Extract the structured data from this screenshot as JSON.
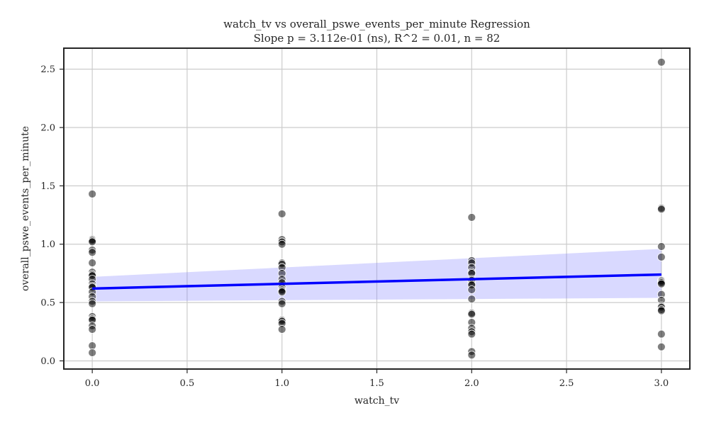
{
  "chart_data": {
    "type": "scatter",
    "title": "watch_tv vs overall_pswe_events_per_minute Regression",
    "subtitle": "Slope p = 3.112e-01 (ns), R^2 = 0.01, n = 82",
    "xlabel": "watch_tv",
    "ylabel": "overall_pswe_events_per_minute",
    "xlim": [
      -0.15,
      3.15
    ],
    "ylim": [
      -0.07,
      2.68
    ],
    "xticks": [
      0.0,
      0.5,
      1.0,
      1.5,
      2.0,
      2.5,
      3.0
    ],
    "xtick_labels": [
      "0.0",
      "0.5",
      "1.0",
      "1.5",
      "2.0",
      "2.5",
      "3.0"
    ],
    "yticks": [
      0.0,
      0.5,
      1.0,
      1.5,
      2.0,
      2.5
    ],
    "ytick_labels": [
      "0.0",
      "0.5",
      "1.0",
      "1.5",
      "2.0",
      "2.5"
    ],
    "grid": true,
    "points": [
      {
        "x": 0,
        "y": 1.43
      },
      {
        "x": 0,
        "y": 1.04
      },
      {
        "x": 0,
        "y": 1.03
      },
      {
        "x": 0,
        "y": 1.02
      },
      {
        "x": 0,
        "y": 0.95
      },
      {
        "x": 0,
        "y": 0.93
      },
      {
        "x": 0,
        "y": 0.84
      },
      {
        "x": 0,
        "y": 0.76
      },
      {
        "x": 0,
        "y": 0.74
      },
      {
        "x": 0,
        "y": 0.73
      },
      {
        "x": 0,
        "y": 0.7
      },
      {
        "x": 0,
        "y": 0.66
      },
      {
        "x": 0,
        "y": 0.64
      },
      {
        "x": 0,
        "y": 0.63
      },
      {
        "x": 0,
        "y": 0.59
      },
      {
        "x": 0,
        "y": 0.55
      },
      {
        "x": 0,
        "y": 0.51
      },
      {
        "x": 0,
        "y": 0.49
      },
      {
        "x": 0,
        "y": 0.38
      },
      {
        "x": 0,
        "y": 0.36
      },
      {
        "x": 0,
        "y": 0.35
      },
      {
        "x": 0,
        "y": 0.3
      },
      {
        "x": 0,
        "y": 0.27
      },
      {
        "x": 0,
        "y": 0.13
      },
      {
        "x": 0,
        "y": 0.07
      },
      {
        "x": 1,
        "y": 1.26
      },
      {
        "x": 1,
        "y": 1.04
      },
      {
        "x": 1,
        "y": 1.02
      },
      {
        "x": 1,
        "y": 1.0
      },
      {
        "x": 1,
        "y": 0.84
      },
      {
        "x": 1,
        "y": 0.83
      },
      {
        "x": 1,
        "y": 0.8
      },
      {
        "x": 1,
        "y": 0.75
      },
      {
        "x": 1,
        "y": 0.7
      },
      {
        "x": 1,
        "y": 0.67
      },
      {
        "x": 1,
        "y": 0.63
      },
      {
        "x": 1,
        "y": 0.61
      },
      {
        "x": 1,
        "y": 0.6
      },
      {
        "x": 1,
        "y": 0.59
      },
      {
        "x": 1,
        "y": 0.51
      },
      {
        "x": 1,
        "y": 0.49
      },
      {
        "x": 1,
        "y": 0.35
      },
      {
        "x": 1,
        "y": 0.34
      },
      {
        "x": 1,
        "y": 0.32
      },
      {
        "x": 1,
        "y": 0.27
      },
      {
        "x": 2,
        "y": 1.23
      },
      {
        "x": 2,
        "y": 0.86
      },
      {
        "x": 2,
        "y": 0.84
      },
      {
        "x": 2,
        "y": 0.8
      },
      {
        "x": 2,
        "y": 0.76
      },
      {
        "x": 2,
        "y": 0.75
      },
      {
        "x": 2,
        "y": 0.7
      },
      {
        "x": 2,
        "y": 0.69
      },
      {
        "x": 2,
        "y": 0.66
      },
      {
        "x": 2,
        "y": 0.65
      },
      {
        "x": 2,
        "y": 0.61
      },
      {
        "x": 2,
        "y": 0.53
      },
      {
        "x": 2,
        "y": 0.41
      },
      {
        "x": 2,
        "y": 0.4
      },
      {
        "x": 2,
        "y": 0.33
      },
      {
        "x": 2,
        "y": 0.28
      },
      {
        "x": 2,
        "y": 0.25
      },
      {
        "x": 2,
        "y": 0.23
      },
      {
        "x": 2,
        "y": 0.08
      },
      {
        "x": 2,
        "y": 0.05
      },
      {
        "x": 3,
        "y": 2.56
      },
      {
        "x": 3,
        "y": 1.31
      },
      {
        "x": 3,
        "y": 1.3
      },
      {
        "x": 3,
        "y": 0.98
      },
      {
        "x": 3,
        "y": 0.89
      },
      {
        "x": 3,
        "y": 0.69
      },
      {
        "x": 3,
        "y": 0.68
      },
      {
        "x": 3,
        "y": 0.67
      },
      {
        "x": 3,
        "y": 0.66
      },
      {
        "x": 3,
        "y": 0.57
      },
      {
        "x": 3,
        "y": 0.52
      },
      {
        "x": 3,
        "y": 0.47
      },
      {
        "x": 3,
        "y": 0.46
      },
      {
        "x": 3,
        "y": 0.44
      },
      {
        "x": 3,
        "y": 0.43
      },
      {
        "x": 3,
        "y": 0.23
      },
      {
        "x": 3,
        "y": 0.12
      }
    ],
    "regression": {
      "x": [
        0,
        3
      ],
      "y": [
        0.62,
        0.74
      ],
      "ci_upper": [
        0.72,
        0.96
      ],
      "ci_lower": [
        0.51,
        0.54
      ]
    },
    "colors": {
      "points": "#000000",
      "point_edge": "#ffffff",
      "line": "#0000ff",
      "band": "#8080ff",
      "grid": "#cccccc",
      "axes": "#262626"
    }
  }
}
